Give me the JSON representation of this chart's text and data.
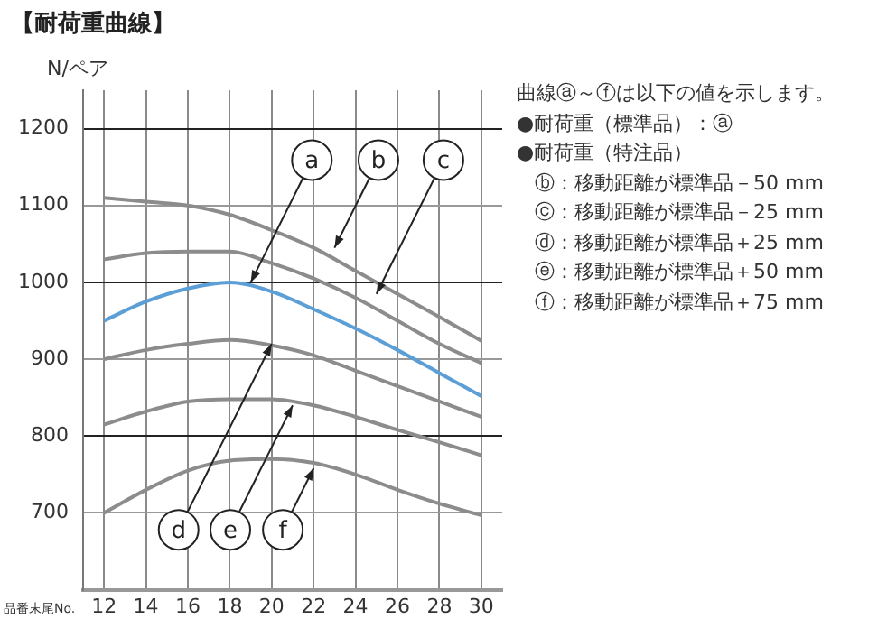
{
  "chart_data": {
    "type": "line",
    "title": "【耐荷重曲線】",
    "ylabel": "N/ペア",
    "xlabel": "品番末尾No.",
    "x": [
      12,
      14,
      16,
      18,
      20,
      22,
      24,
      26,
      28,
      30
    ],
    "xlim": [
      11,
      31
    ],
    "xticks": [
      12,
      14,
      16,
      18,
      20,
      22,
      24,
      26,
      28,
      30
    ],
    "ylim": [
      600,
      1250
    ],
    "yticks": [
      700,
      800,
      900,
      1000,
      1100,
      1200
    ],
    "grid": true,
    "legend": false,
    "marker": "none",
    "line_style": "solid",
    "series": [
      {
        "color": "#5b9fd6",
        "values": [
          950,
          975,
          992,
          1000,
          988,
          965,
          940,
          912,
          882,
          852
        ]
      },
      {
        "color": "#8c8c8c",
        "values": [
          1110,
          1105,
          1100,
          1088,
          1068,
          1045,
          1015,
          985,
          955,
          924
        ]
      },
      {
        "color": "#8c8c8c",
        "values": [
          1030,
          1038,
          1040,
          1040,
          1025,
          1005,
          980,
          950,
          920,
          895
        ]
      },
      {
        "color": "#8c8c8c",
        "values": [
          900,
          912,
          920,
          925,
          918,
          905,
          885,
          865,
          845,
          825
        ]
      },
      {
        "color": "#8c8c8c",
        "values": [
          815,
          832,
          845,
          848,
          848,
          840,
          825,
          808,
          792,
          775
        ]
      },
      {
        "color": "#8c8c8c",
        "values": [
          700,
          730,
          755,
          768,
          770,
          765,
          750,
          730,
          712,
          697
        ]
      }
    ],
    "annotations": [
      {
        "text": "a",
        "x": 19,
        "y": 1000
      },
      {
        "text": "b",
        "x": 23,
        "y": 1045
      },
      {
        "text": "c",
        "x": 25,
        "y": 985
      },
      {
        "text": "d",
        "x": 20,
        "y": 920
      },
      {
        "text": "e",
        "x": 21,
        "y": 840
      },
      {
        "text": "f",
        "x": 22,
        "y": 758
      },
      "曲線ⓐ～ⓕは以下の値を示します。",
      "●耐荷重（標準品）：ⓐ",
      "●耐荷重（特注品）",
      "ⓑ：移動距離が標準品－50 mm",
      "ⓒ：移動距離が標準品－25 mm",
      "ⓓ：移動距離が標準品＋25 mm",
      "ⓔ：移動距離が標準品＋50 mm",
      "ⓕ：移動距離が標準品＋75 mm"
    ]
  }
}
